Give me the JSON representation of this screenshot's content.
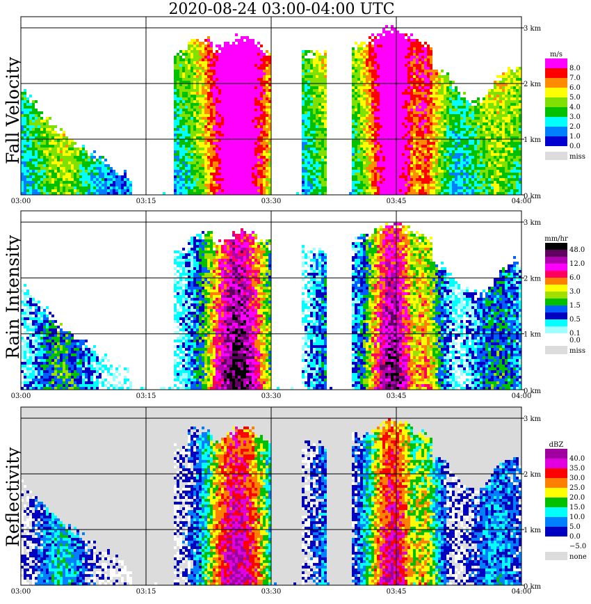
{
  "title": "2020-08-24   03:00-04:00 UTC",
  "x_ticks": [
    "03:00",
    "03:15",
    "03:30",
    "03:45",
    "04:00"
  ],
  "alt_ticks": [
    "0 km",
    "1 km",
    "2 km",
    "3 km"
  ],
  "chart_data": [
    {
      "type": "heatmap",
      "ylabel": "Fall Velocity",
      "unit": "m/s",
      "missing_label": "miss",
      "missing_color": "#dcdcdc",
      "background": "#ffffff",
      "legend": [
        {
          "label": "8.0",
          "color": "#ff00ff"
        },
        {
          "label": "7.0",
          "color": "#ff0000"
        },
        {
          "label": "6.0",
          "color": "#ff8c00"
        },
        {
          "label": "5.0",
          "color": "#ffff00"
        },
        {
          "label": "4.0",
          "color": "#80e000"
        },
        {
          "label": "3.0",
          "color": "#00c000"
        },
        {
          "label": "2.0",
          "color": "#00ffff"
        },
        {
          "label": "1.0",
          "color": "#0080ff"
        },
        {
          "label": "0.0",
          "color": "#0000d0"
        }
      ],
      "x_range": [
        "03:00",
        "04:00"
      ],
      "y_range_km": [
        0,
        3.1
      ]
    },
    {
      "type": "heatmap",
      "ylabel": "Rain Intensity",
      "unit": "mm/hr",
      "missing_label": "miss",
      "missing_color": "#dcdcdc",
      "background": "#ffffff",
      "legend": [
        {
          "label": "48.0",
          "color": "#000000"
        },
        {
          "label": "",
          "color": "#600060"
        },
        {
          "label": "12.0",
          "color": "#b000b0"
        },
        {
          "label": "",
          "color": "#ff00ff"
        },
        {
          "label": "6.0",
          "color": "#ff0060"
        },
        {
          "label": "",
          "color": "#ff8000"
        },
        {
          "label": "3.0",
          "color": "#ffff00"
        },
        {
          "label": "",
          "color": "#a0e000"
        },
        {
          "label": "1.5",
          "color": "#00c000"
        },
        {
          "label": "",
          "color": "#0060ff"
        },
        {
          "label": "0.5",
          "color": "#0000c0"
        },
        {
          "label": "",
          "color": "#00ffff"
        },
        {
          "label": "0.1",
          "color": "#a0ffff"
        },
        {
          "label": "0.0",
          "color": "#ffffff"
        }
      ],
      "x_range": [
        "03:00",
        "04:00"
      ],
      "y_range_km": [
        0,
        3.1
      ]
    },
    {
      "type": "heatmap",
      "ylabel": "Reflectivity",
      "unit": "dBZ",
      "missing_label": "none",
      "missing_color": "#dcdcdc",
      "background": "#dcdcdc",
      "legend": [
        {
          "label": "40.0",
          "color": "#a000a0"
        },
        {
          "label": "35.0",
          "color": "#e000e0"
        },
        {
          "label": "30.0",
          "color": "#ff0000"
        },
        {
          "label": "25.0",
          "color": "#ff8000"
        },
        {
          "label": "20.0",
          "color": "#ffff00"
        },
        {
          "label": "15.0",
          "color": "#00c000"
        },
        {
          "label": "10.0",
          "color": "#00ffff"
        },
        {
          "label": "5.0",
          "color": "#0080ff"
        },
        {
          "label": "0.0",
          "color": "#0000c0"
        },
        {
          "label": "−5.0",
          "color": "#ffffff"
        }
      ],
      "x_range": [
        "03:00",
        "04:00"
      ],
      "y_range_km": [
        0,
        3.1
      ]
    }
  ]
}
